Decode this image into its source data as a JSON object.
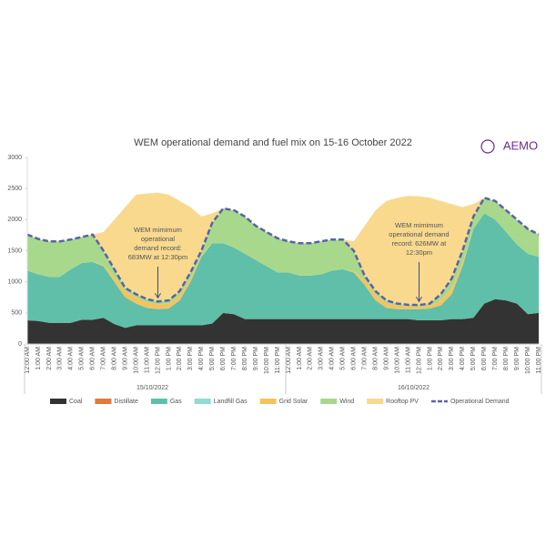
{
  "chart_data": {
    "type": "stacked_area",
    "title": "WEM operational demand and fuel mix on 15-16 October 2022",
    "logo": "AEMO",
    "groups": [
      "15/10/2022",
      "16/10/2022"
    ],
    "categories": [
      "12:00 AM",
      "1:00 AM",
      "2:00 AM",
      "3:00 AM",
      "4:00 AM",
      "5:00 AM",
      "6:00 AM",
      "7:00 AM",
      "8:00 AM",
      "9:00 AM",
      "10:00 AM",
      "11:00 AM",
      "12:00 PM",
      "1:00 PM",
      "2:00 PM",
      "3:00 PM",
      "4:00 PM",
      "5:00 PM",
      "6:00 PM",
      "7:00 PM",
      "8:00 PM",
      "9:00 PM",
      "10:00 PM",
      "11:00 PM",
      "12:00 AM",
      "1:00 AM",
      "2:00 AM",
      "3:00 AM",
      "4:00 AM",
      "5:00 AM",
      "6:00 AM",
      "7:00 AM",
      "8:00 AM",
      "9:00 AM",
      "10:00 AM",
      "11:00 AM",
      "12:00 PM",
      "1:00 PM",
      "2:00 PM",
      "3:00 PM",
      "4:00 PM",
      "5:00 PM",
      "6:00 PM",
      "7:00 PM",
      "8:00 PM",
      "9:00 PM",
      "10:00 PM",
      "11:00 PM"
    ],
    "series": [
      {
        "name": "Coal",
        "color": "#333333",
        "values": [
          380,
          370,
          340,
          340,
          340,
          390,
          390,
          420,
          320,
          260,
          300,
          300,
          300,
          300,
          300,
          300,
          300,
          330,
          500,
          480,
          400,
          400,
          400,
          400,
          400,
          400,
          400,
          400,
          400,
          400,
          400,
          400,
          400,
          400,
          400,
          400,
          380,
          380,
          380,
          400,
          400,
          420,
          650,
          720,
          700,
          650,
          480,
          500
        ]
      },
      {
        "name": "Distillate",
        "color": "#e07b39",
        "values": [
          0,
          0,
          0,
          0,
          0,
          0,
          0,
          0,
          0,
          0,
          0,
          0,
          0,
          0,
          0,
          0,
          0,
          0,
          0,
          0,
          0,
          0,
          0,
          0,
          0,
          0,
          0,
          0,
          0,
          0,
          0,
          0,
          0,
          0,
          0,
          0,
          0,
          0,
          0,
          0,
          0,
          0,
          0,
          0,
          0,
          0,
          0,
          0
        ]
      },
      {
        "name": "Gas",
        "color": "#5fbfa8",
        "values": [
          800,
          750,
          740,
          740,
          860,
          910,
          930,
          830,
          680,
          490,
          350,
          280,
          260,
          270,
          400,
          700,
          1100,
          1290,
          1120,
          1070,
          1050,
          950,
          850,
          750,
          750,
          700,
          700,
          720,
          780,
          800,
          750,
          550,
          300,
          180,
          160,
          160,
          180,
          190,
          240,
          400,
          850,
          1430,
          1450,
          1280,
          1100,
          950,
          970,
          900
        ]
      },
      {
        "name": "Landfill Gas",
        "color": "#8fdcd4",
        "values": [
          0,
          0,
          0,
          0,
          0,
          0,
          0,
          0,
          0,
          0,
          0,
          0,
          0,
          0,
          0,
          0,
          0,
          0,
          0,
          0,
          0,
          0,
          0,
          0,
          0,
          0,
          0,
          0,
          0,
          0,
          0,
          0,
          0,
          0,
          0,
          0,
          0,
          0,
          0,
          0,
          0,
          0,
          0,
          0,
          0,
          0,
          0,
          0
        ]
      },
      {
        "name": "Grid Solar",
        "color": "#f4c35e",
        "values": [
          0,
          0,
          0,
          0,
          0,
          0,
          0,
          20,
          80,
          100,
          100,
          90,
          80,
          80,
          80,
          60,
          20,
          0,
          0,
          0,
          0,
          0,
          0,
          0,
          0,
          0,
          0,
          0,
          0,
          0,
          20,
          80,
          100,
          80,
          60,
          50,
          40,
          50,
          80,
          100,
          50,
          0,
          0,
          0,
          0,
          0,
          0,
          0
        ]
      },
      {
        "name": "Wind",
        "color": "#a8d88c",
        "values": [
          580,
          570,
          570,
          570,
          480,
          420,
          440,
          230,
          120,
          50,
          50,
          50,
          43,
          50,
          70,
          90,
          80,
          330,
          560,
          600,
          600,
          550,
          550,
          550,
          500,
          520,
          520,
          530,
          500,
          480,
          330,
          70,
          50,
          40,
          30,
          20,
          26,
          30,
          100,
          150,
          200,
          200,
          250,
          300,
          350,
          400,
          400,
          360
        ]
      },
      {
        "name": "Rooftop PV",
        "color": "#f8d98e",
        "values": [
          0,
          0,
          0,
          0,
          0,
          0,
          0,
          300,
          800,
          1300,
          1600,
          1700,
          1750,
          1700,
          1450,
          1050,
          550,
          150,
          0,
          0,
          0,
          0,
          0,
          0,
          0,
          0,
          0,
          0,
          0,
          0,
          150,
          800,
          1300,
          1600,
          1700,
          1750,
          1750,
          1700,
          1500,
          1200,
          700,
          200,
          0,
          0,
          0,
          0,
          0,
          0
        ]
      },
      {
        "name": "Operational Demand",
        "type": "line",
        "color": "#5a62a8",
        "values": [
          1760,
          1690,
          1650,
          1650,
          1680,
          1720,
          1760,
          1500,
          1200,
          900,
          800,
          720,
          683,
          700,
          850,
          1150,
          1500,
          1950,
          2180,
          2150,
          2050,
          1900,
          1800,
          1700,
          1650,
          1620,
          1620,
          1650,
          1680,
          1680,
          1500,
          1100,
          850,
          700,
          650,
          630,
          626,
          650,
          800,
          1050,
          1500,
          2050,
          2350,
          2300,
          2150,
          2000,
          1850,
          1760
        ]
      }
    ],
    "annotations": [
      {
        "lines": [
          "WEM mimimum",
          "operational",
          "demand record:",
          "683MW at 12:30pm"
        ]
      },
      {
        "lines": [
          "WEM mimimum",
          "operational demand",
          "record: 626MW at",
          "12:30pm"
        ]
      }
    ],
    "ylim": [
      0,
      3000
    ],
    "yticks": [
      0,
      500,
      1000,
      1500,
      2000,
      2500,
      3000
    ],
    "grid": false
  }
}
